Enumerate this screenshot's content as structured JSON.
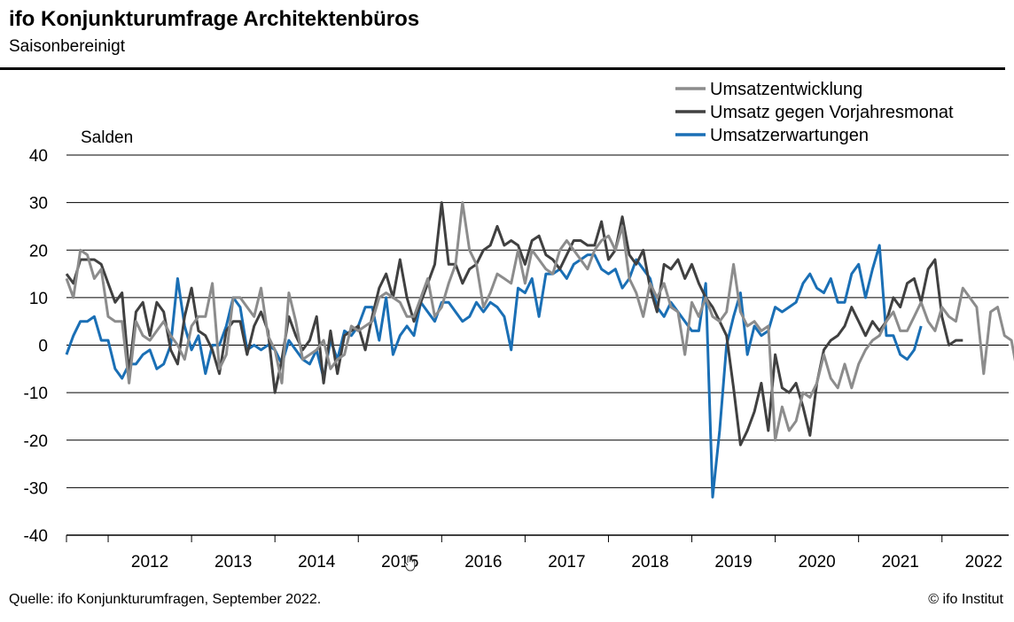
{
  "header": {
    "title": "ifo Konjunkturumfrage Architektenbüros",
    "subtitle": "Saisonbereinigt"
  },
  "footer": {
    "source": "Quelle: ifo Konjunkturumfragen, September 2022.",
    "copyright": "© ifo Institut"
  },
  "chart_data": {
    "type": "line",
    "ylabel": "Salden",
    "ylim": [
      -40,
      40
    ],
    "yticks": [
      -40,
      -30,
      -20,
      -10,
      0,
      10,
      20,
      30,
      40
    ],
    "xlim": [
      2011.5,
      2022.8
    ],
    "year_labels": [
      "2012",
      "2013",
      "2014",
      "2015",
      "2016",
      "2017",
      "2018",
      "2019",
      "2020",
      "2021",
      "2022"
    ],
    "grid": "horizontal",
    "legend_position": "top-right",
    "x_start": 2011.5,
    "x_step": 0.0833333,
    "series": [
      {
        "name": "Umsatzentwicklung",
        "color": "#8c8c8c",
        "values": [
          14,
          10,
          20,
          19,
          14,
          16,
          6,
          5,
          5,
          -8,
          5,
          2,
          1,
          3,
          5,
          2,
          0,
          -3,
          4,
          6,
          6,
          13,
          -5,
          -2,
          10,
          10,
          8,
          6,
          12,
          2,
          -1,
          -8,
          11,
          5,
          -3,
          -2,
          -1,
          1,
          -5,
          -3,
          -2,
          4,
          3,
          4,
          5,
          10,
          11,
          10,
          9,
          6,
          6,
          10,
          14,
          6,
          8,
          13,
          17,
          30,
          20,
          17,
          8,
          11,
          15,
          14,
          13,
          20,
          13,
          20,
          18,
          16,
          15,
          20,
          22,
          20,
          18,
          16,
          20,
          22,
          23,
          20,
          25,
          14,
          11,
          6,
          13,
          10,
          13,
          8,
          7,
          -2,
          9,
          6,
          10,
          6,
          5,
          7,
          17,
          7,
          4,
          5,
          3,
          4,
          -20,
          -13,
          -18,
          -16,
          -10,
          -11,
          -8,
          -2,
          -7,
          -9,
          -4,
          -9,
          -4,
          -1,
          1,
          2,
          5,
          7,
          3,
          3,
          6,
          9,
          5,
          3,
          8,
          6,
          5,
          12,
          10,
          8,
          -6,
          7,
          8,
          2,
          1,
          -7
        ]
      },
      {
        "name": "Umsatz gegen Vorjahresmonat",
        "color": "#404040",
        "values": [
          15,
          13,
          18,
          18,
          18,
          17,
          13,
          9,
          11,
          -6,
          7,
          9,
          2,
          9,
          7,
          -1,
          -4,
          6,
          12,
          3,
          2,
          -1,
          -6,
          3,
          5,
          5,
          -2,
          4,
          7,
          3,
          -10,
          -3,
          6,
          2,
          -1,
          1,
          6,
          -8,
          3,
          -6,
          2,
          3,
          4,
          -1,
          6,
          12,
          15,
          10,
          18,
          10,
          5,
          9,
          13,
          17,
          30,
          17,
          17,
          13,
          16,
          17,
          20,
          21,
          25,
          21,
          22,
          21,
          17,
          22,
          23,
          19,
          18,
          16,
          19,
          22,
          22,
          21,
          21,
          26,
          18,
          20,
          27,
          19,
          17,
          20,
          12,
          7,
          17,
          16,
          18,
          14,
          17,
          13,
          10,
          8,
          5,
          2,
          -9,
          -21,
          -18,
          -14,
          -8,
          -18,
          -2,
          -9,
          -10,
          -8,
          -13,
          -19,
          -8,
          -1,
          1,
          2,
          4,
          8,
          5,
          2,
          5,
          3,
          5,
          10,
          8,
          13,
          14,
          9,
          16,
          18,
          6,
          0,
          1,
          1
        ]
      },
      {
        "name": "Umsatzerwartungen",
        "color": "#1a6fb5",
        "values": [
          -2,
          2,
          5,
          5,
          6,
          1,
          1,
          -5,
          -7,
          -4,
          -4,
          -2,
          -1,
          -5,
          -4,
          0,
          14,
          4,
          -1,
          2,
          -6,
          0,
          0,
          4,
          10,
          8,
          -1,
          0,
          -1,
          0,
          -1,
          -4,
          1,
          -1,
          -3,
          -4,
          -1,
          -7,
          1,
          -3,
          3,
          2,
          4,
          8,
          8,
          1,
          10,
          -2,
          2,
          4,
          2,
          9,
          7,
          5,
          9,
          9,
          7,
          5,
          6,
          9,
          7,
          9,
          8,
          6,
          -1,
          12,
          11,
          14,
          6,
          15,
          15,
          16,
          14,
          17,
          18,
          19,
          19,
          16,
          15,
          16,
          12,
          14,
          18,
          16,
          14,
          8,
          6,
          9,
          7,
          5,
          3,
          3,
          13,
          -32,
          -18,
          0,
          6,
          11,
          -2,
          4,
          2,
          3,
          8,
          7,
          8,
          9,
          13,
          15,
          12,
          11,
          14,
          9,
          9,
          15,
          17,
          10,
          16,
          21,
          2,
          2,
          -2,
          -3,
          -1,
          4
        ]
      }
    ]
  }
}
